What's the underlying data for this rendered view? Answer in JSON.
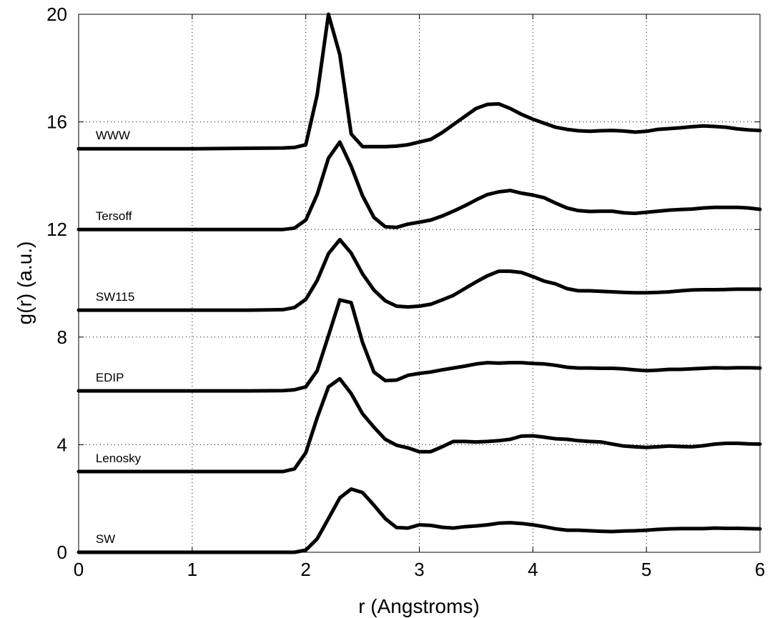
{
  "chart_data": {
    "type": "line",
    "xlabel": "r (Angstroms)",
    "ylabel": "g(r) (a.u.)",
    "xlim": [
      0,
      6
    ],
    "ylim": [
      0,
      20
    ],
    "x_ticks": [
      0,
      1,
      2,
      3,
      4,
      5,
      6
    ],
    "y_ticks": [
      0,
      4,
      8,
      12,
      16,
      20
    ],
    "x_tick_labels": [
      "0",
      "1",
      "2",
      "3",
      "4",
      "5",
      "6"
    ],
    "y_tick_labels": [
      "0",
      "4",
      "8",
      "12",
      "16",
      "20"
    ],
    "grid": true,
    "series": [
      {
        "name": "WWW",
        "x": [
          0,
          0.5,
          1,
          1.5,
          1.8,
          1.9,
          2.0,
          2.1,
          2.2,
          2.3,
          2.4,
          2.5,
          2.6,
          2.7,
          2.8,
          2.9,
          3.0,
          3.1,
          3.2,
          3.3,
          3.4,
          3.5,
          3.6,
          3.7,
          3.8,
          3.9,
          4.0,
          4.1,
          4.2,
          4.3,
          4.4,
          4.5,
          4.6,
          4.7,
          4.8,
          4.9,
          5.0,
          5.1,
          5.2,
          5.3,
          5.4,
          5.5,
          5.6,
          5.7,
          5.8,
          5.9,
          6.0
        ],
        "values": [
          15.0,
          15.0,
          15.0,
          15.02,
          15.03,
          15.05,
          15.15,
          17.0,
          20.0,
          18.5,
          15.55,
          15.08,
          15.08,
          15.08,
          15.1,
          15.15,
          15.25,
          15.35,
          15.6,
          15.9,
          16.2,
          16.5,
          16.65,
          16.67,
          16.5,
          16.28,
          16.1,
          15.95,
          15.8,
          15.72,
          15.67,
          15.65,
          15.67,
          15.68,
          15.66,
          15.62,
          15.65,
          15.72,
          15.75,
          15.78,
          15.82,
          15.85,
          15.83,
          15.8,
          15.74,
          15.7,
          15.68
        ]
      },
      {
        "name": "Tersoff",
        "x": [
          0,
          0.5,
          1,
          1.5,
          1.8,
          1.9,
          2.0,
          2.1,
          2.2,
          2.3,
          2.4,
          2.5,
          2.6,
          2.7,
          2.8,
          2.9,
          3.0,
          3.1,
          3.2,
          3.3,
          3.4,
          3.5,
          3.6,
          3.7,
          3.8,
          3.9,
          4.0,
          4.1,
          4.2,
          4.3,
          4.4,
          4.5,
          4.6,
          4.7,
          4.8,
          4.9,
          5.0,
          5.1,
          5.2,
          5.3,
          5.4,
          5.5,
          5.6,
          5.7,
          5.8,
          5.9,
          6.0
        ],
        "values": [
          12.0,
          12.0,
          12.0,
          12.0,
          12.0,
          12.05,
          12.35,
          13.3,
          14.65,
          15.25,
          14.35,
          13.25,
          12.45,
          12.1,
          12.08,
          12.2,
          12.27,
          12.35,
          12.5,
          12.68,
          12.88,
          13.1,
          13.3,
          13.4,
          13.45,
          13.35,
          13.28,
          13.18,
          12.98,
          12.8,
          12.7,
          12.67,
          12.68,
          12.68,
          12.62,
          12.6,
          12.64,
          12.68,
          12.72,
          12.74,
          12.76,
          12.8,
          12.82,
          12.82,
          12.82,
          12.8,
          12.75
        ]
      },
      {
        "name": "SW115",
        "x": [
          0,
          0.5,
          1,
          1.5,
          1.8,
          1.9,
          2.0,
          2.1,
          2.2,
          2.3,
          2.4,
          2.5,
          2.6,
          2.7,
          2.8,
          2.9,
          3.0,
          3.1,
          3.2,
          3.3,
          3.4,
          3.5,
          3.6,
          3.7,
          3.8,
          3.9,
          4.0,
          4.1,
          4.2,
          4.3,
          4.4,
          4.5,
          4.6,
          4.7,
          4.8,
          4.9,
          5.0,
          5.1,
          5.2,
          5.3,
          5.4,
          5.5,
          5.6,
          5.7,
          5.8,
          5.9,
          6.0
        ],
        "values": [
          9.0,
          9.0,
          9.0,
          9.0,
          9.02,
          9.1,
          9.4,
          10.1,
          11.1,
          11.62,
          11.12,
          10.35,
          9.75,
          9.35,
          9.15,
          9.12,
          9.15,
          9.22,
          9.38,
          9.55,
          9.8,
          10.05,
          10.28,
          10.45,
          10.45,
          10.4,
          10.25,
          10.08,
          9.98,
          9.8,
          9.72,
          9.72,
          9.7,
          9.68,
          9.66,
          9.65,
          9.65,
          9.66,
          9.68,
          9.72,
          9.75,
          9.76,
          9.76,
          9.77,
          9.78,
          9.78,
          9.78
        ]
      },
      {
        "name": "EDIP",
        "x": [
          0,
          0.5,
          1,
          1.5,
          1.8,
          1.9,
          2.0,
          2.1,
          2.2,
          2.3,
          2.4,
          2.5,
          2.6,
          2.7,
          2.8,
          2.9,
          3.0,
          3.1,
          3.2,
          3.3,
          3.4,
          3.5,
          3.6,
          3.7,
          3.8,
          3.9,
          4.0,
          4.1,
          4.2,
          4.3,
          4.4,
          4.5,
          4.6,
          4.7,
          4.8,
          4.9,
          5.0,
          5.1,
          5.2,
          5.3,
          5.4,
          5.5,
          5.6,
          5.7,
          5.8,
          5.9,
          6.0
        ],
        "values": [
          6.0,
          6.0,
          6.0,
          6.0,
          6.01,
          6.04,
          6.15,
          6.75,
          8.05,
          9.38,
          9.28,
          7.8,
          6.7,
          6.38,
          6.4,
          6.58,
          6.65,
          6.7,
          6.78,
          6.85,
          6.92,
          7.0,
          7.05,
          7.03,
          7.05,
          7.05,
          7.02,
          7.0,
          6.95,
          6.88,
          6.85,
          6.85,
          6.84,
          6.84,
          6.82,
          6.78,
          6.75,
          6.77,
          6.8,
          6.8,
          6.82,
          6.84,
          6.86,
          6.85,
          6.86,
          6.86,
          6.85
        ]
      },
      {
        "name": "Lenosky",
        "x": [
          0,
          0.5,
          1,
          1.5,
          1.8,
          1.9,
          2.0,
          2.1,
          2.2,
          2.3,
          2.4,
          2.5,
          2.6,
          2.7,
          2.8,
          2.9,
          3.0,
          3.1,
          3.2,
          3.3,
          3.4,
          3.5,
          3.6,
          3.7,
          3.8,
          3.9,
          4.0,
          4.1,
          4.2,
          4.3,
          4.4,
          4.5,
          4.6,
          4.7,
          4.8,
          4.9,
          5.0,
          5.1,
          5.2,
          5.3,
          5.4,
          5.5,
          5.6,
          5.7,
          5.8,
          5.9,
          6.0
        ],
        "values": [
          3.0,
          3.0,
          3.0,
          3.0,
          3.0,
          3.1,
          3.7,
          5.0,
          6.15,
          6.45,
          5.9,
          5.15,
          4.65,
          4.2,
          3.98,
          3.88,
          3.74,
          3.74,
          3.92,
          4.12,
          4.12,
          4.1,
          4.12,
          4.15,
          4.2,
          4.32,
          4.33,
          4.28,
          4.22,
          4.2,
          4.15,
          4.12,
          4.1,
          4.02,
          3.95,
          3.92,
          3.9,
          3.92,
          3.95,
          3.93,
          3.92,
          3.96,
          4.02,
          4.05,
          4.05,
          4.03,
          4.02
        ]
      },
      {
        "name": "SW",
        "x": [
          0,
          0.5,
          1,
          1.5,
          1.8,
          1.9,
          2.0,
          2.1,
          2.2,
          2.3,
          2.4,
          2.5,
          2.6,
          2.7,
          2.8,
          2.9,
          3.0,
          3.1,
          3.2,
          3.3,
          3.4,
          3.5,
          3.6,
          3.7,
          3.8,
          3.9,
          4.0,
          4.1,
          4.2,
          4.3,
          4.4,
          4.5,
          4.6,
          4.7,
          4.8,
          4.9,
          5.0,
          5.1,
          5.2,
          5.3,
          5.4,
          5.5,
          5.6,
          5.7,
          5.8,
          5.9,
          6.0
        ],
        "values": [
          0.0,
          0.0,
          0.0,
          0.0,
          0.0,
          0.0,
          0.08,
          0.5,
          1.25,
          2.02,
          2.35,
          2.22,
          1.75,
          1.25,
          0.92,
          0.9,
          1.02,
          1.0,
          0.93,
          0.9,
          0.95,
          0.98,
          1.02,
          1.08,
          1.1,
          1.07,
          1.02,
          0.95,
          0.87,
          0.82,
          0.82,
          0.8,
          0.78,
          0.77,
          0.79,
          0.8,
          0.82,
          0.85,
          0.87,
          0.88,
          0.88,
          0.88,
          0.9,
          0.89,
          0.89,
          0.88,
          0.87
        ]
      }
    ]
  }
}
